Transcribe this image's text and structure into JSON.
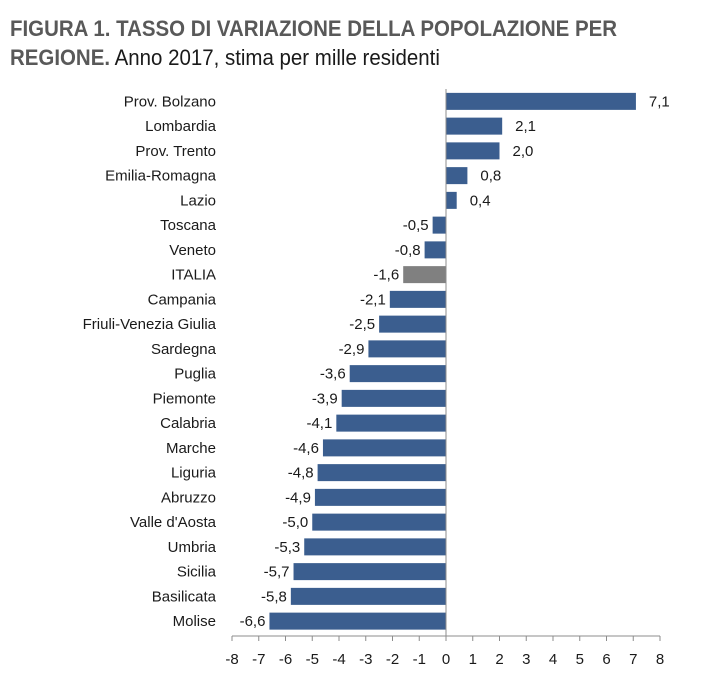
{
  "title": {
    "line1": "FIGURA 1. TASSO DI VARIAZIONE DELLA POPOLAZIONE PER",
    "line2_bold": "REGIONE.",
    "line2_rest": "Anno 2017, stima per mille residenti"
  },
  "chart_data": {
    "type": "bar",
    "orientation": "horizontal",
    "categories": [
      "Prov. Bolzano",
      "Lombardia",
      "Prov. Trento",
      "Emilia-Romagna",
      "Lazio",
      "Toscana",
      "Veneto",
      "ITALIA",
      "Campania",
      "Friuli-Venezia Giulia",
      "Sardegna",
      "Puglia",
      "Piemonte",
      "Calabria",
      "Marche",
      "Liguria",
      "Abruzzo",
      "Valle d'Aosta",
      "Umbria",
      "Sicilia",
      "Basilicata",
      "Molise"
    ],
    "values": [
      7.1,
      2.1,
      2.0,
      0.8,
      0.4,
      -0.5,
      -0.8,
      -1.6,
      -2.1,
      -2.5,
      -2.9,
      -3.6,
      -3.9,
      -4.1,
      -4.6,
      -4.8,
      -4.9,
      -5.0,
      -5.3,
      -5.7,
      -5.8,
      -6.6
    ],
    "value_labels": [
      "7,1",
      "2,1",
      "2,0",
      "0,8",
      "0,4",
      "-0,5",
      "-0,8",
      "-1,6",
      "-2,1",
      "-2,5",
      "-2,9",
      "-3,6",
      "-3,9",
      "-4,1",
      "-4,6",
      "-4,8",
      "-4,9",
      "-5,0",
      "-5,3",
      "-5,7",
      "-5,8",
      "-6,6"
    ],
    "xlim": [
      -8,
      8
    ],
    "xticks": [
      "-8",
      "-7",
      "-6",
      "-5",
      "-4",
      "-3",
      "-2",
      "-1",
      "0",
      "1",
      "2",
      "3",
      "4",
      "5",
      "6",
      "7",
      "8"
    ],
    "highlight_category": "ITALIA",
    "bar_color": "#3b5e8f",
    "highlight_color": "#808080",
    "grid": false,
    "xlabel": "",
    "ylabel": ""
  }
}
